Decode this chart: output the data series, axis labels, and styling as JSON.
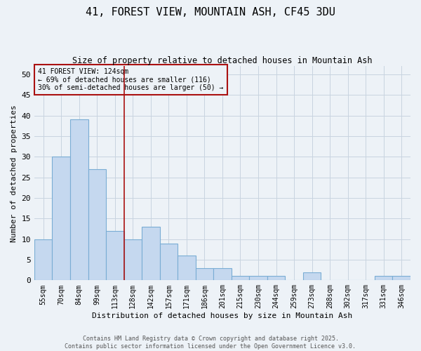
{
  "title": "41, FOREST VIEW, MOUNTAIN ASH, CF45 3DU",
  "subtitle": "Size of property relative to detached houses in Mountain Ash",
  "xlabel": "Distribution of detached houses by size in Mountain Ash",
  "ylabel": "Number of detached properties",
  "categories": [
    "55sqm",
    "70sqm",
    "84sqm",
    "99sqm",
    "113sqm",
    "128sqm",
    "142sqm",
    "157sqm",
    "171sqm",
    "186sqm",
    "201sqm",
    "215sqm",
    "230sqm",
    "244sqm",
    "259sqm",
    "273sqm",
    "288sqm",
    "302sqm",
    "317sqm",
    "331sqm",
    "346sqm"
  ],
  "values": [
    10,
    30,
    39,
    27,
    12,
    10,
    13,
    9,
    6,
    3,
    3,
    1,
    1,
    1,
    0,
    2,
    0,
    0,
    0,
    1,
    1
  ],
  "bar_color": "#c5d8ef",
  "bar_edgecolor": "#7aadd4",
  "vline_x": 4.5,
  "vline_color": "#aa1111",
  "annotation_text": "41 FOREST VIEW: 124sqm\n← 69% of detached houses are smaller (116)\n30% of semi-detached houses are larger (50) →",
  "annotation_box_edgecolor": "#aa1111",
  "ylim": [
    0,
    52
  ],
  "yticks": [
    0,
    5,
    10,
    15,
    20,
    25,
    30,
    35,
    40,
    45,
    50
  ],
  "footer_line1": "Contains HM Land Registry data © Crown copyright and database right 2025.",
  "footer_line2": "Contains public sector information licensed under the Open Government Licence v3.0.",
  "bg_color": "#edf2f7",
  "grid_color": "#c8d4e0"
}
